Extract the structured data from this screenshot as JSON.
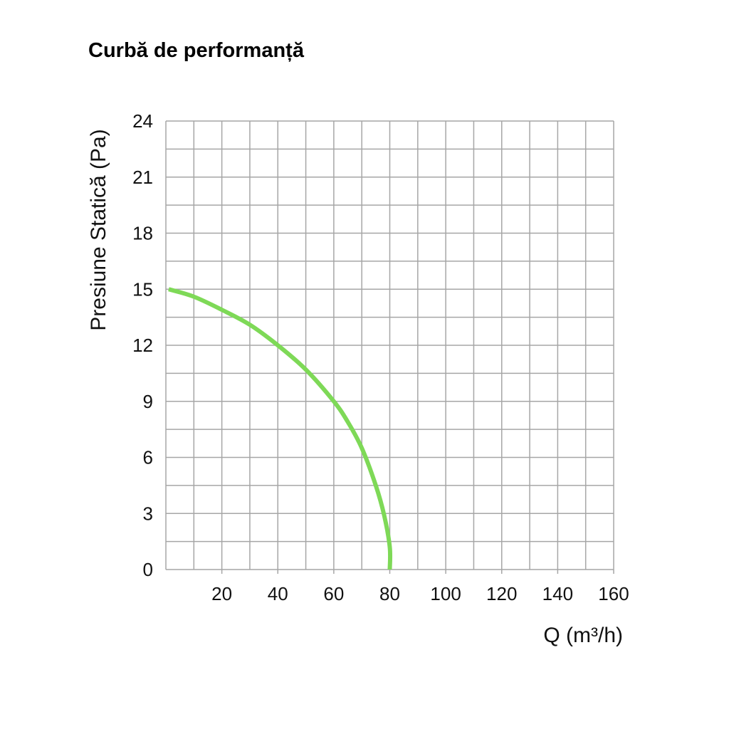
{
  "chart_data": {
    "type": "line",
    "title": "Curbă de performanță",
    "xlabel": "Q (m³/h)",
    "ylabel": "Presiune Statică (Pa)",
    "xlim": [
      0,
      160
    ],
    "ylim": [
      0,
      24
    ],
    "x_ticks": [
      20,
      40,
      60,
      80,
      100,
      120,
      140,
      160
    ],
    "y_ticks": [
      0,
      3,
      6,
      9,
      12,
      15,
      18,
      21,
      24
    ],
    "x_ticks_display": [
      "20",
      "40",
      "60",
      "80",
      "100",
      "120",
      "140",
      "160"
    ],
    "y_ticks_display": [
      "0",
      "3",
      "6",
      "9",
      "12",
      "15",
      "18",
      "21",
      "24"
    ],
    "grid": true,
    "series": [
      {
        "color": "#7ed957",
        "x": [
          1,
          10,
          20,
          30,
          40,
          50,
          60,
          65,
          70,
          75,
          78,
          80,
          80
        ],
        "y": [
          15,
          14.6,
          13.9,
          13.1,
          12.0,
          10.7,
          9.0,
          7.9,
          6.5,
          4.5,
          2.9,
          1.2,
          0
        ]
      }
    ]
  }
}
